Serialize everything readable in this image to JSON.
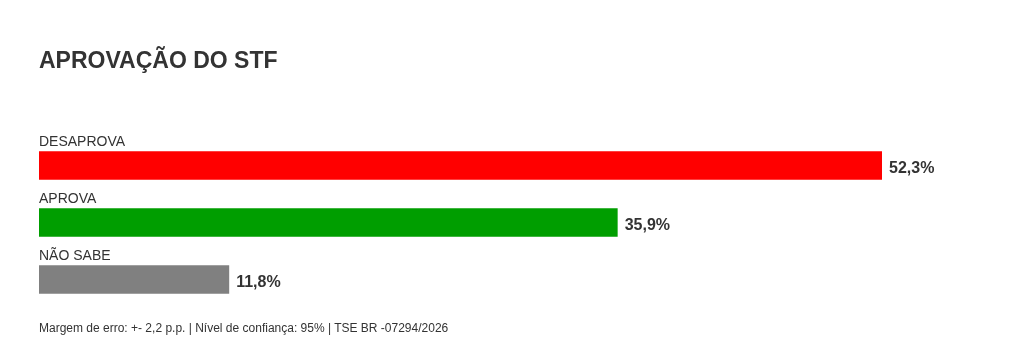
{
  "chart_data": {
    "type": "bar",
    "orientation": "horizontal",
    "title": "APROVAÇÃO DO STF",
    "categories": [
      "DESAPROVA",
      "APROVA",
      "NÃO SABE"
    ],
    "values": [
      52.3,
      35.9,
      11.8
    ],
    "colors": [
      "#ff0000",
      "#009e00",
      "#808080"
    ],
    "value_labels": [
      "52,3%",
      "35,9%",
      "11,8%"
    ],
    "annotations": [
      "Margem de erro: +- 2,2 p.p. | Nível de confiança: 95% | TSE BR -07294/2026"
    ]
  }
}
